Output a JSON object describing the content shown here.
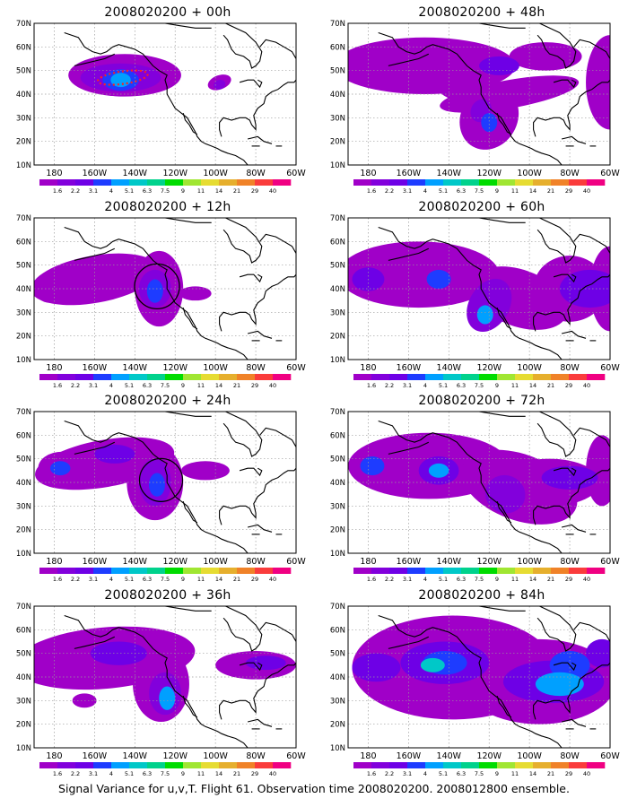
{
  "panels": [
    {
      "title": "2008020200 + 00h",
      "forecast_hour": 0
    },
    {
      "title": "2008020200 + 48h",
      "forecast_hour": 48
    },
    {
      "title": "2008020200 + 12h",
      "forecast_hour": 12
    },
    {
      "title": "2008020200 + 60h",
      "forecast_hour": 60
    },
    {
      "title": "2008020200 + 24h",
      "forecast_hour": 24
    },
    {
      "title": "2008020200 + 72h",
      "forecast_hour": 72
    },
    {
      "title": "2008020200 + 36h",
      "forecast_hour": 36
    },
    {
      "title": "2008020200 + 84h",
      "forecast_hour": 84
    }
  ],
  "map": {
    "lon_labels": [
      "180",
      "160W",
      "140W",
      "120W",
      "100W",
      "80W",
      "60W"
    ],
    "lat_labels": [
      "10N",
      "20N",
      "30N",
      "40N",
      "50N",
      "60N",
      "70N"
    ],
    "lon_range": [
      170,
      300
    ],
    "lat_range": [
      10,
      70
    ]
  },
  "colorbar": {
    "labels": [
      "1.6",
      "2.2",
      "3.1",
      "4",
      "5.1",
      "6.3",
      "7.5",
      "9",
      "11",
      "14",
      "21",
      "29",
      "40"
    ],
    "colors": [
      "#a000c8",
      "#8200dc",
      "#6e00e6",
      "#1e3cff",
      "#00a0ff",
      "#00c8c8",
      "#00d28c",
      "#00dc00",
      "#a0e632",
      "#e6dc32",
      "#e6af2d",
      "#f08228",
      "#fa3c3c",
      "#f00082"
    ]
  },
  "caption": "Signal Variance for u,v,T. Flight 61. Observation time 2008020200. 2008012800 ensemble."
}
